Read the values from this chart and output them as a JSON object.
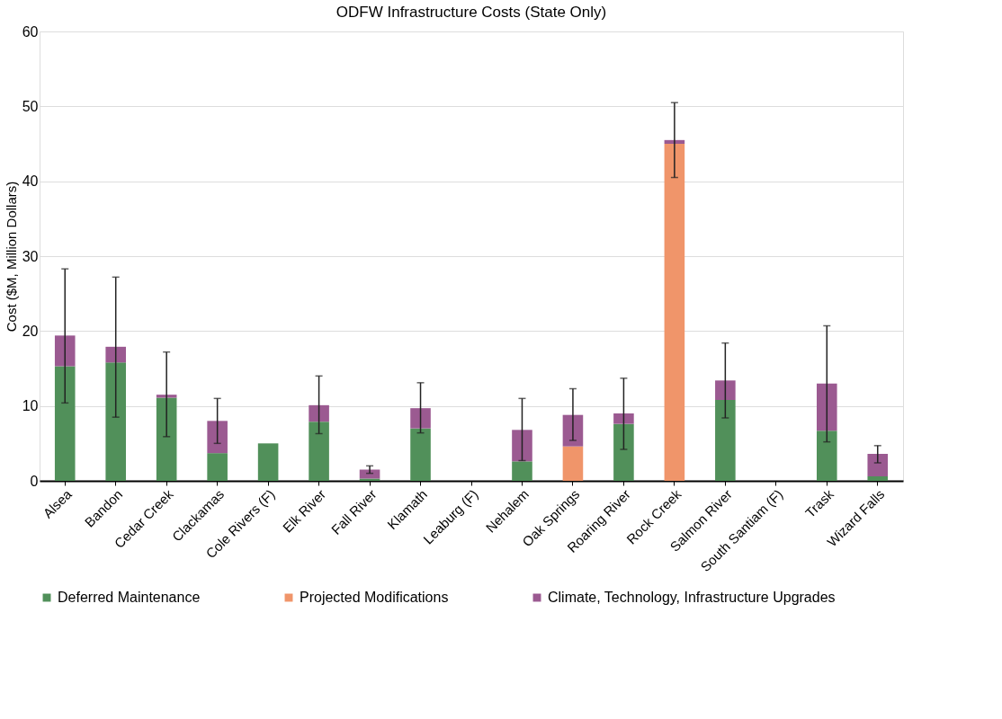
{
  "chart_data": {
    "type": "bar",
    "title": "ODFW Infrastructure Costs (State Only)",
    "ylabel": "Cost ($M, Million Dollars)",
    "categories": [
      "Alsea",
      "Bandon",
      "Cedar Creek",
      "Clackamas",
      "Cole Rivers (F)",
      "Elk River",
      "Fall River",
      "Klamath",
      "Leaburg (F)",
      "Nehalem",
      "Oak Springs",
      "Roaring River",
      "Rock Creek",
      "Salmon River",
      "South Santiam (F)",
      "Trask",
      "Wizard Falls"
    ],
    "stacked": true,
    "series": [
      {
        "name": "Deferred Maintenance",
        "color": "#51905a",
        "values": [
          15.3,
          15.8,
          11.1,
          3.7,
          5.0,
          7.9,
          0.3,
          7.0,
          null,
          2.6,
          null,
          7.6,
          null,
          10.8,
          null,
          6.7,
          0.6
        ]
      },
      {
        "name": "Projected Modifications",
        "color": "#f0956a",
        "values": [
          null,
          null,
          null,
          null,
          null,
          null,
          null,
          null,
          null,
          null,
          4.6,
          null,
          45.0,
          null,
          null,
          null,
          null
        ]
      },
      {
        "name": "Climate, Technology, Infrastructure Upgrades",
        "color": "#9b5a91",
        "values": [
          4.1,
          2.1,
          0.4,
          4.3,
          null,
          2.2,
          1.2,
          2.7,
          null,
          4.2,
          4.2,
          1.4,
          0.5,
          2.6,
          null,
          6.3,
          3.0
        ],
        "errors": [
          [
            10.4,
            28.3
          ],
          [
            8.5,
            27.2
          ],
          [
            5.9,
            17.2
          ],
          [
            5.0,
            11.0
          ],
          null,
          [
            6.3,
            14.0
          ],
          [
            1.0,
            2.0
          ],
          [
            6.4,
            13.1
          ],
          null,
          [
            2.7,
            11.0
          ],
          [
            5.4,
            12.3
          ],
          [
            4.2,
            13.7
          ],
          [
            40.5,
            50.5
          ],
          [
            8.4,
            18.4
          ],
          null,
          [
            5.2,
            20.7
          ],
          [
            2.4,
            4.7
          ]
        ]
      }
    ],
    "ylim": [
      0,
      60
    ],
    "yticks": [
      0,
      10,
      20,
      30,
      40,
      50,
      60
    ],
    "grid": "y",
    "legend": "bottom"
  }
}
